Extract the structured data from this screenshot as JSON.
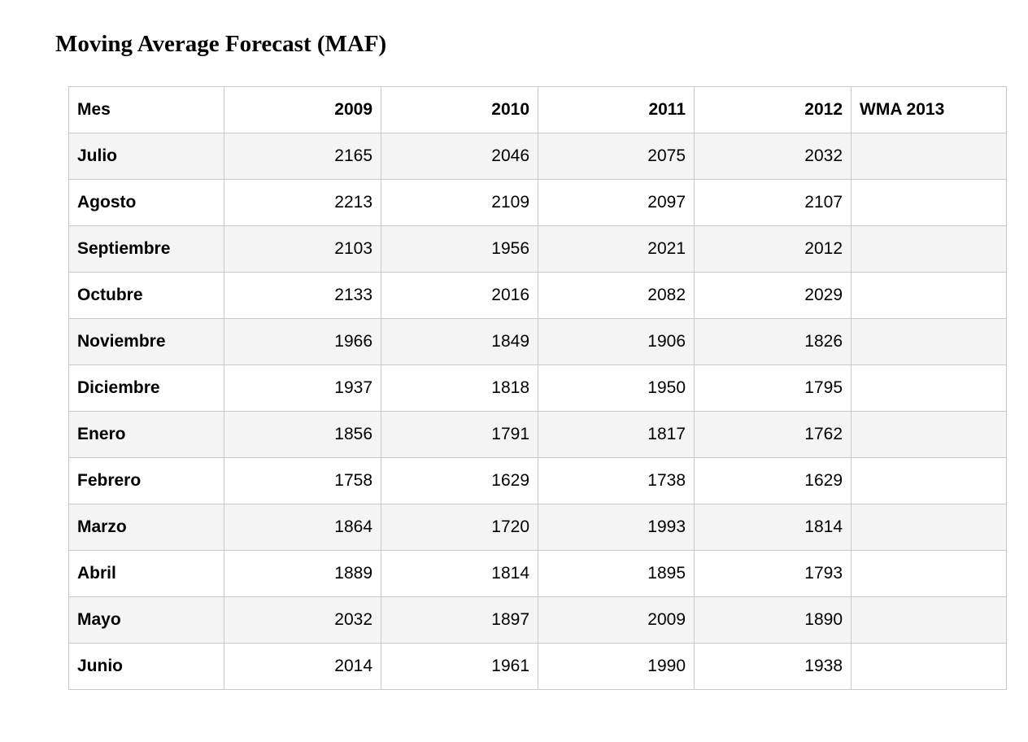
{
  "title": "Moving Average Forecast (MAF)",
  "chart_data": {
    "type": "table",
    "title": "Moving Average Forecast (MAF)",
    "columns": [
      "Mes",
      "2009",
      "2010",
      "2011",
      "2012",
      "WMA 2013"
    ],
    "rows": [
      [
        "Julio",
        2165,
        2046,
        2075,
        2032,
        ""
      ],
      [
        "Agosto",
        2213,
        2109,
        2097,
        2107,
        ""
      ],
      [
        "Septiembre",
        2103,
        1956,
        2021,
        2012,
        ""
      ],
      [
        "Octubre",
        2133,
        2016,
        2082,
        2029,
        ""
      ],
      [
        "Noviembre",
        1966,
        1849,
        1906,
        1826,
        ""
      ],
      [
        "Diciembre",
        1937,
        1818,
        1950,
        1795,
        ""
      ],
      [
        "Enero",
        1856,
        1791,
        1817,
        1762,
        ""
      ],
      [
        "Febrero",
        1758,
        1629,
        1738,
        1629,
        ""
      ],
      [
        "Marzo",
        1864,
        1720,
        1993,
        1814,
        ""
      ],
      [
        "Abril",
        1889,
        1814,
        1895,
        1793,
        ""
      ],
      [
        "Mayo",
        2032,
        1897,
        2009,
        1890,
        ""
      ],
      [
        "Junio",
        2014,
        1961,
        1990,
        1938,
        ""
      ]
    ],
    "layout": {
      "grid": true,
      "striped_rows": true,
      "number_alignment": "right"
    }
  },
  "colors": {
    "stripe": "#f4f4f5",
    "border": "#c9c9c9",
    "text": "#000000",
    "background": "#ffffff"
  }
}
